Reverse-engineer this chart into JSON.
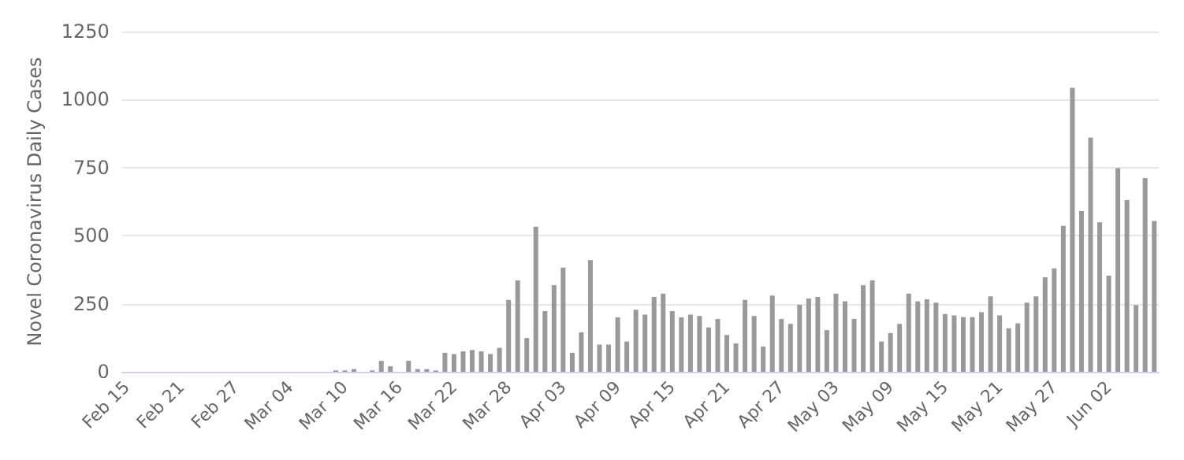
{
  "chart_data": {
    "type": "bar",
    "ylabel": "Novel Coronavirus Daily Cases",
    "categories": [
      "Feb 15",
      null,
      null,
      null,
      null,
      null,
      "Feb 21",
      null,
      null,
      null,
      null,
      null,
      "Feb 27",
      null,
      null,
      null,
      null,
      null,
      "Mar 04",
      null,
      null,
      null,
      null,
      null,
      "Mar 10",
      null,
      null,
      null,
      null,
      null,
      "Mar 16",
      null,
      null,
      null,
      null,
      null,
      "Mar 22",
      null,
      null,
      null,
      null,
      null,
      "Mar 28",
      null,
      null,
      null,
      null,
      null,
      "Apr 03",
      null,
      null,
      null,
      null,
      null,
      "Apr 09",
      null,
      null,
      null,
      null,
      null,
      "Apr 15",
      null,
      null,
      null,
      null,
      null,
      "Apr 21",
      null,
      null,
      null,
      null,
      null,
      "Apr 27",
      null,
      null,
      null,
      null,
      null,
      "May 03",
      null,
      null,
      null,
      null,
      null,
      "May 09",
      null,
      null,
      null,
      null,
      null,
      "May 15",
      null,
      null,
      null,
      null,
      null,
      "May 21",
      null,
      null,
      null,
      null,
      null,
      "May 27",
      null,
      null,
      null,
      null,
      null,
      "Jun 02",
      null,
      null,
      null,
      null,
      null
    ],
    "values": [
      0,
      0,
      0,
      0,
      0,
      0,
      0,
      0,
      0,
      0,
      0,
      0,
      0,
      0,
      0,
      0,
      0,
      0,
      0,
      0,
      0,
      0,
      0,
      5,
      5,
      10,
      0,
      5,
      40,
      20,
      0,
      40,
      10,
      10,
      5,
      70,
      65,
      75,
      80,
      75,
      65,
      88,
      264,
      336,
      124,
      533,
      223,
      318,
      383,
      70,
      145,
      410,
      100,
      100,
      200,
      111,
      228,
      210,
      275,
      287,
      223,
      200,
      210,
      205,
      163,
      194,
      135,
      104,
      264,
      205,
      93,
      280,
      194,
      176,
      246,
      269,
      275,
      153,
      287,
      259,
      194,
      318,
      336,
      111,
      142,
      176,
      287,
      259,
      266,
      254,
      212,
      207,
      201,
      201,
      219,
      277,
      207,
      160,
      178,
      254,
      277,
      347,
      380,
      536,
      1043,
      590,
      860,
      549,
      353,
      748,
      631,
      245,
      712,
      554
    ],
    "color": "#999999",
    "ylim": [
      0,
      1250
    ],
    "yticks": [
      0,
      250,
      500,
      750,
      1000,
      1250
    ],
    "grid": "y"
  }
}
